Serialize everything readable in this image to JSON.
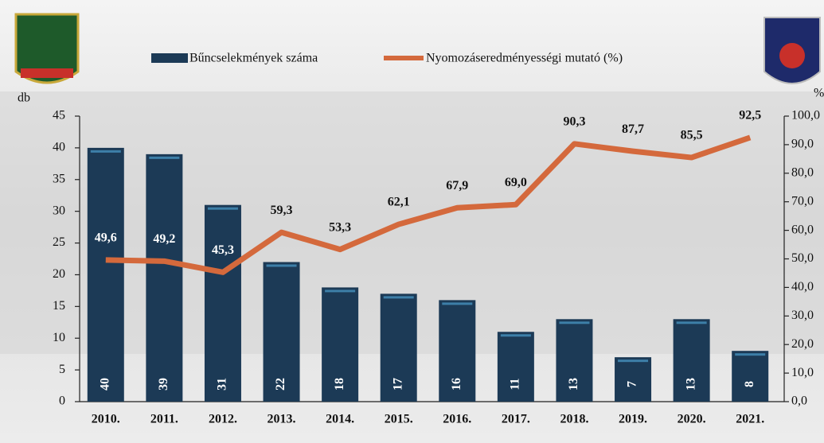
{
  "chart_data": {
    "type": "bar",
    "categories": [
      "2010.",
      "2011.",
      "2012.",
      "2013.",
      "2014.",
      "2015.",
      "2016.",
      "2017.",
      "2018.",
      "2019.",
      "2020.",
      "2021."
    ],
    "series": [
      {
        "name": "Bűncselekmények száma",
        "color": "#1c3a56",
        "values": [
          40,
          39,
          31,
          22,
          18,
          17,
          16,
          11,
          13,
          7,
          13,
          8
        ]
      },
      {
        "name": "Nyomozáseredményességi mutató (%)",
        "type": "line",
        "axis": "y2",
        "color": "#d4693c",
        "values": [
          49.6,
          49.2,
          45.3,
          59.3,
          53.3,
          62.1,
          67.9,
          69.0,
          90.3,
          87.7,
          85.5,
          92.5
        ],
        "value_labels": [
          "49,6",
          "49,2",
          "45,3",
          "59,3",
          "53,3",
          "62,1",
          "67,9",
          "69,0",
          "90,3",
          "87,7",
          "85,5",
          "92,5"
        ]
      }
    ],
    "ylabel": "db",
    "y2label": "%",
    "ylim": [
      0,
      45
    ],
    "yticks": [
      0,
      5,
      10,
      15,
      20,
      25,
      30,
      35,
      40,
      45
    ],
    "y2lim": [
      0,
      100
    ],
    "y2ticks": [
      {
        "value": 0,
        "label": "0,0"
      },
      {
        "value": 10,
        "label": "10,0"
      },
      {
        "value": 20,
        "label": "20,0"
      },
      {
        "value": 30,
        "label": "30,0"
      },
      {
        "value": 40,
        "label": "40,0"
      },
      {
        "value": 50,
        "label": "50,0"
      },
      {
        "value": 60,
        "label": "60,0"
      },
      {
        "value": 70,
        "label": "70,0"
      },
      {
        "value": 80,
        "label": "80,0"
      },
      {
        "value": 90,
        "label": "90,0"
      },
      {
        "value": 100,
        "label": "100,0"
      }
    ],
    "legend": "top"
  }
}
